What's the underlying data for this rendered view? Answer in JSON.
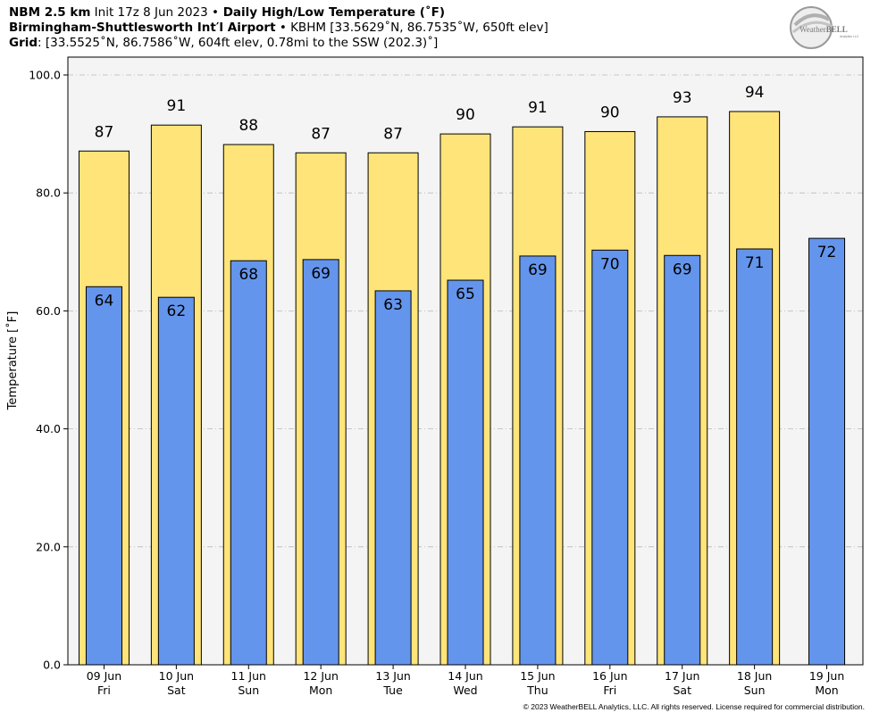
{
  "header": {
    "line1_bold": "NBM 2.5 km",
    "line1_mid": " Init 17z 8 Jun 2023 ",
    "line1_sep": "•",
    "line1_title": " Daily High/Low Temperature (˚F)",
    "line2_bold": "Birmingham-Shuttlesworth Int′l Airport",
    "line2_rest": " • KBHM [33.5629˚N, 86.7535˚W, 650ft elev]",
    "line3_bold": "Grid",
    "line3_rest": ": [33.5525˚N, 86.7586˚W, 604ft elev, 0.78mi to the SSW (202.3)˚]"
  },
  "logo": {
    "text_weather": "Weather",
    "text_bell": "BELL",
    "sub": "Analytics LLC"
  },
  "footer": {
    "copyright": "© 2023 WeatherBELL Analytics, LLC. All rights reserved. License required for commercial distribution."
  },
  "colors": {
    "high": "#ffe47a",
    "low": "#6495ed",
    "plot_bg": "#f4f4f4",
    "grid": "#b8b8b8",
    "accent_logo": "#9a9a9a"
  },
  "chart_data": {
    "type": "bar",
    "ylabel": "Temperature [˚F]",
    "xlabel": "",
    "ylim": [
      0,
      100
    ],
    "yticks": [
      "0.0",
      "20.0",
      "40.0",
      "60.0",
      "80.0",
      "100.0"
    ],
    "grid": true,
    "categories": [
      [
        "09 Jun",
        "Fri"
      ],
      [
        "10 Jun",
        "Sat"
      ],
      [
        "11 Jun",
        "Sun"
      ],
      [
        "12 Jun",
        "Mon"
      ],
      [
        "13 Jun",
        "Tue"
      ],
      [
        "14 Jun",
        "Wed"
      ],
      [
        "15 Jun",
        "Thu"
      ],
      [
        "16 Jun",
        "Fri"
      ],
      [
        "17 Jun",
        "Sat"
      ],
      [
        "18 Jun",
        "Sun"
      ],
      [
        "19 Jun",
        "Mon"
      ]
    ],
    "series": [
      {
        "key": "high",
        "values": [
          87.1,
          91.5,
          88.2,
          86.8,
          86.8,
          90.0,
          91.2,
          90.4,
          92.9,
          93.8,
          null
        ],
        "labels": [
          "87",
          "91",
          "88",
          "87",
          "87",
          "90",
          "91",
          "90",
          "93",
          "94",
          ""
        ]
      },
      {
        "key": "low",
        "values": [
          64.1,
          62.3,
          68.5,
          68.7,
          63.4,
          65.2,
          69.3,
          70.3,
          69.4,
          70.5,
          72.3
        ],
        "labels": [
          "64",
          "62",
          "68",
          "69",
          "63",
          "65",
          "69",
          "70",
          "69",
          "71",
          "72"
        ]
      }
    ]
  }
}
